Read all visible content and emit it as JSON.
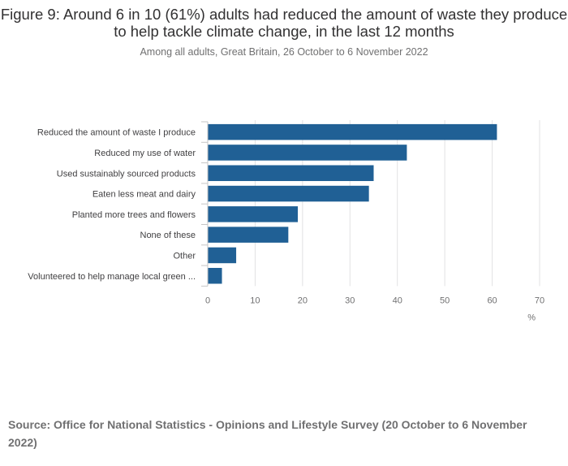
{
  "title": "Figure 9: Around 6 in 10 (61%) adults had reduced the amount of waste they produce to help tackle climate change, in the last 12 months",
  "subtitle": "Among all adults, Great Britain, 26 October to 6 November 2022",
  "source": "Source: Office for National Statistics - Opinions and Lifestyle Survey (20 October to 6 November 2022)",
  "colors": {
    "bar": "#206095",
    "grid": "#e2e2e3",
    "axis": "#c6c6c6",
    "text": "#414042"
  },
  "chart_data": {
    "type": "bar",
    "orientation": "horizontal",
    "title": "Figure 9: Around 6 in 10 (61%) adults had reduced the amount of waste they produce to help tackle climate change, in the last 12 months",
    "categories": [
      "Reduced the amount of waste I produce",
      "Reduced my use of water",
      "Used sustainably sourced products",
      "Eaten less meat and dairy",
      "Planted more trees and flowers",
      "None of these",
      "Other",
      "Volunteered to help manage local green ..."
    ],
    "values": [
      61,
      42,
      35,
      34,
      19,
      17,
      6,
      3
    ],
    "xlabel": "%",
    "ylabel": "",
    "xlim": [
      0,
      70
    ],
    "xticks": [
      0,
      10,
      20,
      30,
      40,
      50,
      60,
      70
    ],
    "grid": true
  }
}
